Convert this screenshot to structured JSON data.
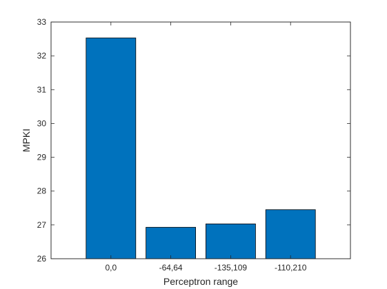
{
  "chart_data": {
    "type": "bar",
    "categories": [
      "0,0",
      "-64,64",
      "-135,109",
      "-110,210"
    ],
    "values": [
      32.53,
      26.93,
      27.03,
      27.45
    ],
    "xlabel": "Perceptron range",
    "ylabel": "MPKI",
    "ylim": [
      26,
      33
    ],
    "yticks": [
      "26",
      "27",
      "28",
      "29",
      "30",
      "31",
      "32",
      "33"
    ],
    "bar_color": "#0072BD",
    "grid": false,
    "legend": "none"
  }
}
